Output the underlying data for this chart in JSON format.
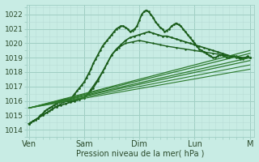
{
  "background_color": "#c8ece4",
  "grid_major_color": "#a0cfc4",
  "grid_minor_color": "#b8ddd6",
  "line_color_main": "#1a5c1a",
  "line_color_alt": "#2d7a2d",
  "ylim": [
    1013.5,
    1022.7
  ],
  "yticks": [
    1014,
    1015,
    1016,
    1017,
    1018,
    1019,
    1020,
    1021,
    1022
  ],
  "xlabel": "Pression niveau de la mer( hPa )",
  "xtick_labels": [
    "Ven",
    "Sam",
    "Dim",
    "Lun",
    "M"
  ],
  "xtick_positions": [
    0,
    48,
    96,
    144,
    192
  ],
  "total_hours": 196,
  "series": [
    {
      "x": [
        0,
        2,
        4,
        6,
        8,
        10,
        12,
        14,
        16,
        18,
        20,
        22,
        24,
        26,
        28,
        30,
        32,
        34,
        36,
        38,
        40,
        42,
        44,
        46,
        48,
        50,
        52,
        54,
        56,
        58,
        60,
        62,
        64,
        66,
        68,
        70,
        72,
        74,
        76,
        78,
        80,
        82,
        84,
        86,
        88,
        90,
        92,
        94,
        96,
        98,
        100,
        102,
        104,
        106,
        108,
        110,
        112,
        114,
        116,
        118,
        120,
        122,
        124,
        126,
        128,
        130,
        132,
        134,
        136,
        138,
        140,
        142,
        144,
        146,
        148,
        150,
        152,
        154,
        156,
        158,
        160,
        162,
        164,
        166,
        168,
        170,
        172,
        174,
        176,
        178,
        180,
        182,
        184,
        186,
        188,
        190,
        192
      ],
      "y": [
        1014.4,
        1014.5,
        1014.6,
        1014.7,
        1014.8,
        1015.0,
        1015.1,
        1015.3,
        1015.4,
        1015.5,
        1015.6,
        1015.7,
        1015.8,
        1015.9,
        1016.0,
        1016.1,
        1016.1,
        1016.0,
        1016.1,
        1016.3,
        1016.5,
        1016.7,
        1016.9,
        1017.1,
        1017.3,
        1017.6,
        1017.9,
        1018.2,
        1018.6,
        1018.9,
        1019.2,
        1019.5,
        1019.8,
        1020.0,
        1020.2,
        1020.4,
        1020.6,
        1020.8,
        1021.0,
        1021.1,
        1021.2,
        1021.2,
        1021.1,
        1021.0,
        1020.8,
        1020.9,
        1021.0,
        1021.2,
        1021.6,
        1022.0,
        1022.2,
        1022.3,
        1022.2,
        1022.0,
        1021.8,
        1021.5,
        1021.3,
        1021.1,
        1021.0,
        1020.8,
        1020.9,
        1021.0,
        1021.2,
        1021.3,
        1021.4,
        1021.3,
        1021.2,
        1021.0,
        1020.8,
        1020.6,
        1020.4,
        1020.2,
        1020.0,
        1019.8,
        1019.6,
        1019.5,
        1019.4,
        1019.3,
        1019.2,
        1019.1,
        1019.0,
        1019.0,
        1019.1,
        1019.2,
        1019.2,
        1019.1,
        1019.0,
        1019.0,
        1019.1,
        1019.1,
        1019.0,
        1019.0,
        1018.9,
        1018.9,
        1019.0,
        1019.1,
        1019.0
      ],
      "lw": 1.3,
      "marker": ".",
      "ms": 1.8,
      "color": "#1a5c1a"
    },
    {
      "x": [
        0,
        4,
        8,
        12,
        16,
        20,
        24,
        28,
        32,
        36,
        40,
        44,
        48,
        52,
        56,
        60,
        64,
        68,
        72,
        76,
        80,
        84,
        88,
        92,
        96,
        100,
        104,
        108,
        112,
        116,
        120,
        124,
        128,
        132,
        136,
        140,
        144,
        148,
        152,
        156,
        160,
        164,
        168,
        172,
        176,
        180,
        184,
        188,
        192
      ],
      "y": [
        1014.4,
        1014.6,
        1014.8,
        1015.0,
        1015.2,
        1015.4,
        1015.6,
        1015.7,
        1015.8,
        1015.9,
        1016.0,
        1016.1,
        1016.2,
        1016.5,
        1016.9,
        1017.4,
        1018.0,
        1018.6,
        1019.2,
        1019.6,
        1019.9,
        1020.2,
        1020.4,
        1020.5,
        1020.6,
        1020.7,
        1020.8,
        1020.7,
        1020.6,
        1020.5,
        1020.5,
        1020.4,
        1020.3,
        1020.2,
        1020.1,
        1020.0,
        1019.9,
        1019.8,
        1019.7,
        1019.6,
        1019.5,
        1019.4,
        1019.3,
        1019.2,
        1019.1,
        1019.1,
        1019.0,
        1019.0,
        1019.0
      ],
      "lw": 1.2,
      "marker": ".",
      "ms": 1.8,
      "color": "#1a5c1a"
    },
    {
      "x": [
        0,
        6,
        12,
        18,
        24,
        30,
        36,
        42,
        48,
        54,
        60,
        66,
        72,
        78,
        84,
        90,
        96,
        102,
        108,
        114,
        120,
        128,
        136,
        144,
        152,
        160,
        168,
        176,
        184,
        192
      ],
      "y": [
        1014.4,
        1014.7,
        1015.0,
        1015.3,
        1015.6,
        1015.9,
        1016.0,
        1016.1,
        1016.2,
        1016.8,
        1017.5,
        1018.3,
        1019.2,
        1019.7,
        1020.0,
        1020.1,
        1020.2,
        1020.1,
        1020.0,
        1019.9,
        1019.8,
        1019.7,
        1019.6,
        1019.5,
        1019.4,
        1019.3,
        1019.2,
        1019.1,
        1019.0,
        1019.0
      ],
      "lw": 1.0,
      "marker": ".",
      "ms": 1.5,
      "color": "#1a5c1a"
    },
    {
      "x": [
        0,
        192
      ],
      "y": [
        1015.5,
        1019.5
      ],
      "lw": 0.9,
      "marker": null,
      "ms": 0,
      "color": "#2d7a2d"
    },
    {
      "x": [
        0,
        192
      ],
      "y": [
        1015.5,
        1019.3
      ],
      "lw": 0.9,
      "marker": null,
      "ms": 0,
      "color": "#2d7a2d"
    },
    {
      "x": [
        0,
        192
      ],
      "y": [
        1015.5,
        1019.0
      ],
      "lw": 0.9,
      "marker": null,
      "ms": 0,
      "color": "#2d7a2d"
    },
    {
      "x": [
        0,
        192
      ],
      "y": [
        1015.5,
        1018.8
      ],
      "lw": 0.9,
      "marker": null,
      "ms": 0,
      "color": "#2d7a2d"
    },
    {
      "x": [
        0,
        192
      ],
      "y": [
        1015.5,
        1018.5
      ],
      "lw": 0.8,
      "marker": null,
      "ms": 0,
      "color": "#2d7a2d"
    },
    {
      "x": [
        0,
        192
      ],
      "y": [
        1015.5,
        1018.2
      ],
      "lw": 0.8,
      "marker": null,
      "ms": 0,
      "color": "#2d7a2d"
    }
  ],
  "figsize": [
    3.2,
    2.0
  ],
  "dpi": 100
}
